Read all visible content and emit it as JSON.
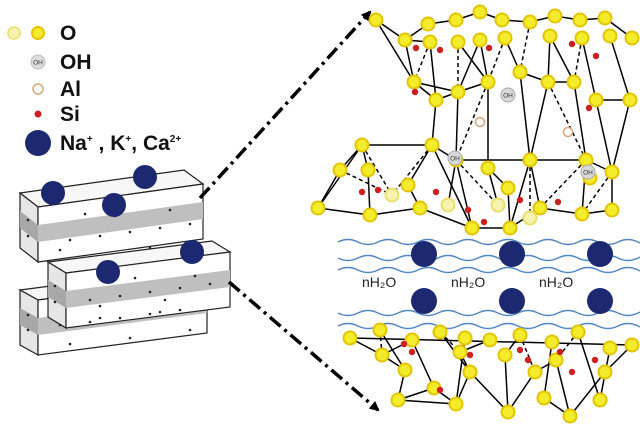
{
  "legend": {
    "oxygen": "O",
    "hydroxyl": "OH",
    "hydroxyl_marker": "OH",
    "aluminum": "Al",
    "silicon": "Si",
    "cations": {
      "na": "Na",
      "na_charge": "+",
      "k": "K",
      "k_charge": "+",
      "ca": "Ca",
      "ca_charge": "2+",
      "sep": ","
    }
  },
  "structure": {
    "oh_marker": "OH",
    "water": [
      "nH₂O",
      "nH₂O",
      "nH₂O"
    ]
  },
  "colors": {
    "oxygen_fill": "#f3ec2a",
    "oxygen_stroke": "#e4c400",
    "oxygen_pale": "#f6f3b0",
    "hydroxyl_fill": "#d9d9d9",
    "aluminum_stroke": "#d9a77a",
    "silicon": "#cc1f1f",
    "cation": "#1c2970",
    "water_wave": "#4f86c6",
    "bond": "#000000"
  }
}
